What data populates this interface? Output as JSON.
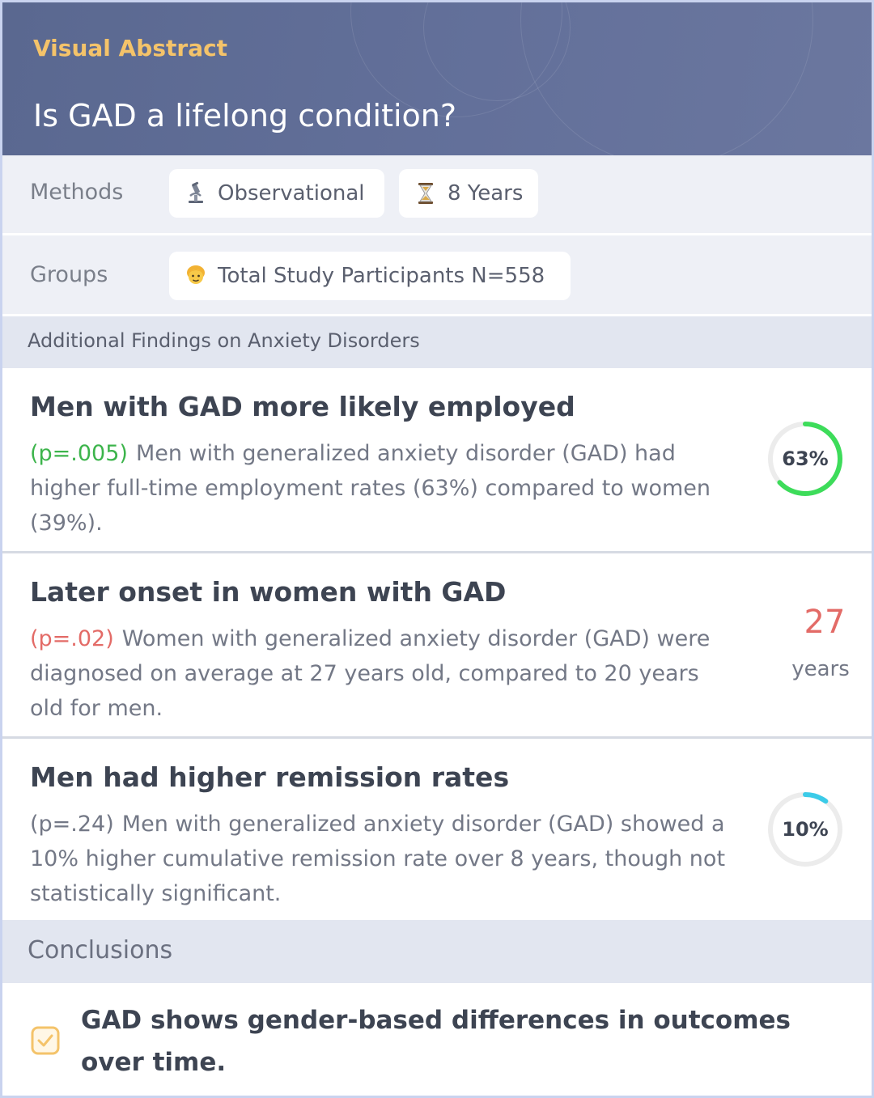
{
  "header": {
    "kicker": "Visual Abstract",
    "title": "Is GAD a lifelong condition?"
  },
  "methods": {
    "label": "Methods",
    "chips": [
      {
        "icon": "microscope-icon",
        "text": "Observational"
      },
      {
        "icon": "hourglass-icon",
        "text": "8 Years"
      }
    ]
  },
  "groups": {
    "label": "Groups",
    "chips": [
      {
        "icon": "person-icon",
        "text": "Total Study Participants N=558"
      }
    ]
  },
  "findings": {
    "heading": "Additional Findings on Anxiety Disorders",
    "items": [
      {
        "title": "Men with GAD more likely employed",
        "p": "(p=.005)",
        "p_color": "#3cb44b",
        "text": "Men with generalized anxiety disorder (GAD) had higher full-time employment rates (63%) compared to women (39%).",
        "metric_type": "ring",
        "metric_label": "63%",
        "metric_value": 63,
        "metric_color": "#3ddc5a"
      },
      {
        "title": "Later onset in women with GAD",
        "p": "(p=.02)",
        "p_color": "#e36b67",
        "text": "Women with generalized anxiety disorder (GAD) were diagnosed on average at 27 years old, compared to 20 years old for men.",
        "metric_type": "number",
        "metric_label": "27",
        "metric_unit": "years"
      },
      {
        "title": "Men had higher remission rates",
        "p": "(p=.24)",
        "p_color": "#737886",
        "text": "Men with generalized anxiety disorder (GAD) showed a 10% higher cumulative remission rate over 8 years, though not statistically significant.",
        "metric_type": "ring",
        "metric_label": "10%",
        "metric_value": 10,
        "metric_color": "#3ccbe8"
      }
    ]
  },
  "conclusions": {
    "heading": "Conclusions",
    "text": "GAD shows gender-based differences in outcomes over time.",
    "icon": "checkbox-icon",
    "accent": "#f4c36a"
  }
}
